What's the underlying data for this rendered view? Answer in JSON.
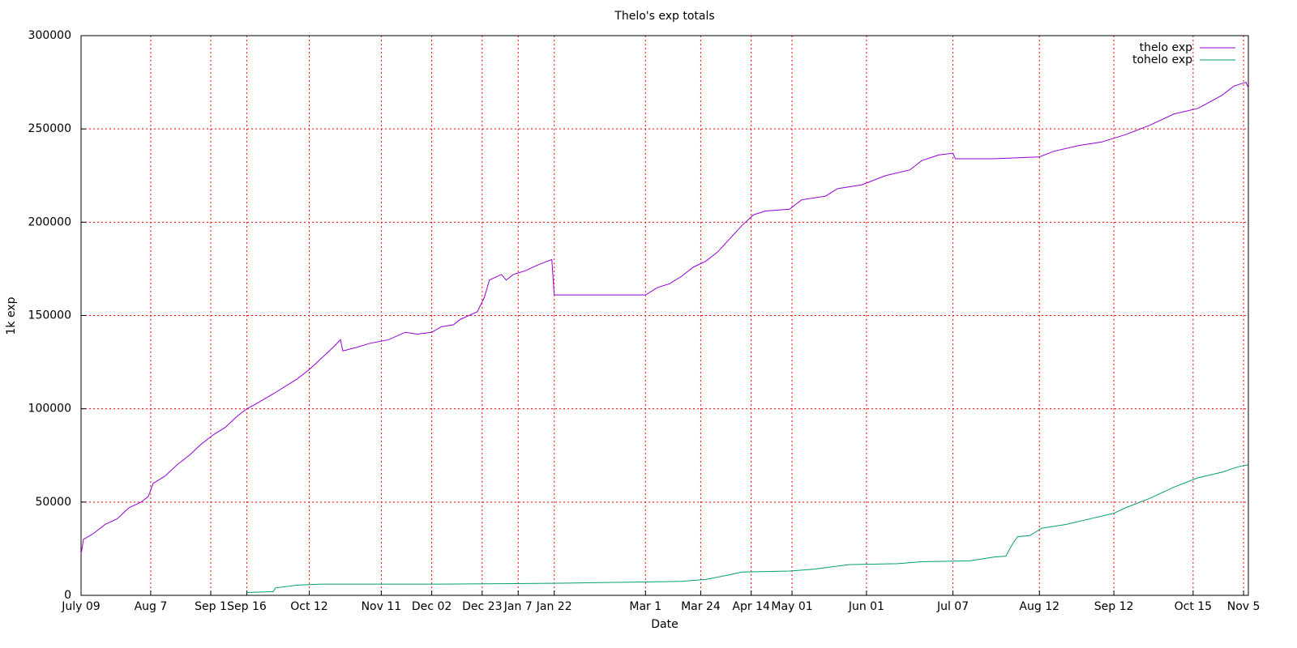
{
  "chart_data": {
    "type": "line",
    "title": "Thelo's exp totals",
    "x_label": "Date",
    "y_label": "1k exp",
    "xlim": [
      0,
      486
    ],
    "ylim": [
      0,
      300000
    ],
    "xticks": [
      {
        "value": 0,
        "label": "July 09"
      },
      {
        "value": 29,
        "label": "Aug 7"
      },
      {
        "value": 54,
        "label": "Sep 1"
      },
      {
        "value": 69,
        "label": "Sep 16"
      },
      {
        "value": 95,
        "label": "Oct 12"
      },
      {
        "value": 125,
        "label": "Nov 11"
      },
      {
        "value": 146,
        "label": "Dec 02"
      },
      {
        "value": 167,
        "label": "Dec 23"
      },
      {
        "value": 182,
        "label": "Jan 7"
      },
      {
        "value": 197,
        "label": "Jan 22"
      },
      {
        "value": 235,
        "label": "Mar 1"
      },
      {
        "value": 258,
        "label": "Mar 24"
      },
      {
        "value": 279,
        "label": "Apr 14"
      },
      {
        "value": 296,
        "label": "May 01"
      },
      {
        "value": 327,
        "label": "Jun 01"
      },
      {
        "value": 363,
        "label": "Jul 07"
      },
      {
        "value": 399,
        "label": "Aug 12"
      },
      {
        "value": 430,
        "label": "Sep 12"
      },
      {
        "value": 463,
        "label": "Oct 15"
      },
      {
        "value": 484,
        "label": "Nov 5"
      }
    ],
    "yticks": [
      0,
      50000,
      100000,
      150000,
      200000,
      250000,
      300000
    ],
    "grid": true,
    "legend": "top-right",
    "series": [
      {
        "name": "thelo exp",
        "color": "#9400d3",
        "x": [
          0,
          1,
          5,
          10,
          15,
          20,
          25,
          28,
          30,
          35,
          40,
          45,
          50,
          55,
          60,
          65,
          69,
          72,
          80,
          90,
          95,
          100,
          105,
          108,
          109,
          115,
          120,
          128,
          135,
          140,
          146,
          150,
          155,
          158,
          165,
          168,
          170,
          175,
          177,
          180,
          185,
          190,
          196,
          197,
          235,
          240,
          245,
          250,
          255,
          260,
          265,
          270,
          275,
          280,
          285,
          295,
          300,
          310,
          315,
          325,
          335,
          345,
          350,
          357,
          363,
          364,
          380,
          399,
          405,
          415,
          425,
          435,
          445,
          455,
          465,
          475,
          480,
          485,
          486
        ],
        "values": [
          22000,
          30000,
          33000,
          38000,
          41000,
          47000,
          50000,
          53000,
          60000,
          64000,
          70000,
          75000,
          81000,
          86000,
          90000,
          96000,
          100000,
          102000,
          108000,
          116000,
          121000,
          127000,
          133000,
          137000,
          131000,
          133000,
          135000,
          137000,
          141000,
          140000,
          141000,
          144000,
          145000,
          148000,
          152000,
          160000,
          169000,
          172000,
          169000,
          172000,
          174000,
          177000,
          180000,
          161000,
          161000,
          165000,
          167000,
          171000,
          176000,
          179000,
          184000,
          191000,
          198000,
          204000,
          206000,
          207000,
          212000,
          214000,
          218000,
          220000,
          225000,
          228000,
          233000,
          236000,
          237000,
          234000,
          234000,
          235000,
          238000,
          241000,
          243000,
          247000,
          252000,
          258000,
          261000,
          268000,
          273000,
          275000,
          272000
        ]
      },
      {
        "name": "tohelo exp",
        "color": "#009e73",
        "x": [
          69,
          80,
          81,
          90,
          100,
          150,
          200,
          250,
          260,
          270,
          275,
          295,
          305,
          320,
          340,
          350,
          370,
          380,
          385,
          388,
          390,
          395,
          400,
          410,
          420,
          430,
          435,
          445,
          455,
          465,
          475,
          482,
          486
        ],
        "values": [
          1500,
          2000,
          4000,
          5500,
          6000,
          6000,
          6500,
          7500,
          8500,
          11000,
          12500,
          13000,
          14000,
          16500,
          17000,
          18000,
          18500,
          20500,
          21000,
          28000,
          31500,
          32000,
          36000,
          38000,
          41000,
          44000,
          47000,
          52000,
          58000,
          63000,
          66000,
          69000,
          70000
        ]
      }
    ]
  }
}
